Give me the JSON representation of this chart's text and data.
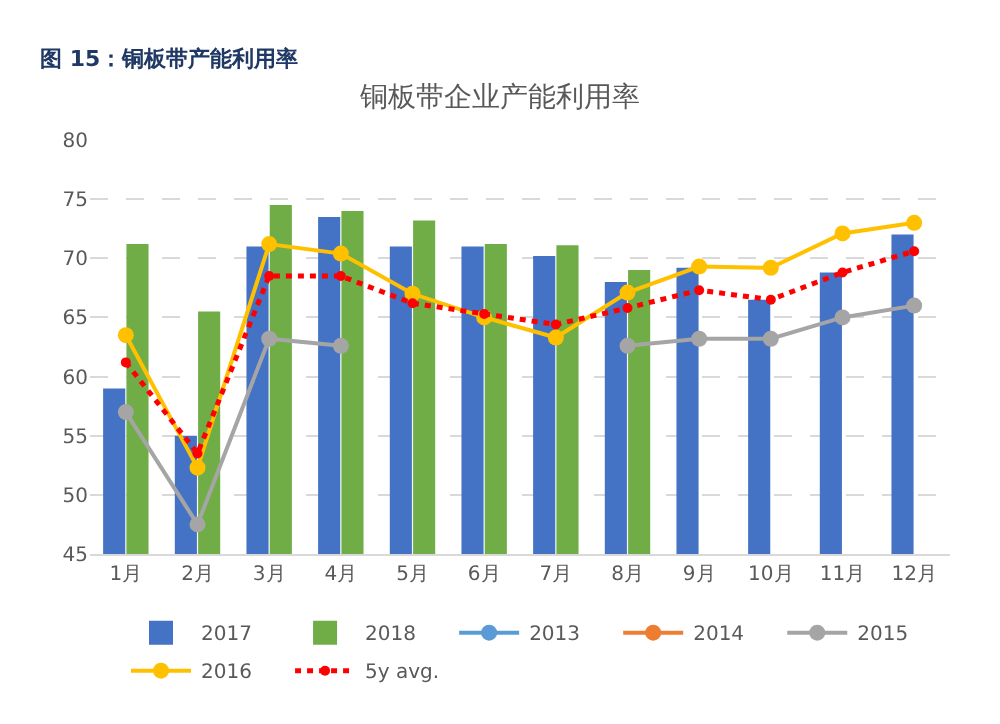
{
  "chart_data": {
    "type": "bar",
    "title": "铜板带企业产能利用率",
    "annotations": [
      "图 15：铜板带产能利用率"
    ],
    "categories": [
      "1月",
      "2月",
      "3月",
      "4月",
      "5月",
      "6月",
      "7月",
      "8月",
      "9月",
      "10月",
      "11月",
      "12月"
    ],
    "series": [
      {
        "name": "2017",
        "color": "#4472c4",
        "values": [
          59,
          55,
          71,
          73.5,
          71,
          71,
          70.2,
          68,
          69.2,
          66.5,
          68.8,
          72
        ]
      },
      {
        "name": "2018",
        "color": "#70ad47",
        "values": [
          71.2,
          65.5,
          74.5,
          74,
          73.2,
          71.2,
          71.1,
          69,
          null,
          null,
          null,
          null
        ]
      },
      {
        "name": "2013",
        "type": "line",
        "color": "#5b9bd5",
        "values": [
          null,
          null,
          null,
          null,
          null,
          null,
          null,
          null,
          null,
          null,
          null,
          null
        ]
      },
      {
        "name": "2014",
        "type": "line",
        "color": "#ed7d31",
        "values": [
          null,
          null,
          null,
          null,
          null,
          null,
          null,
          null,
          null,
          null,
          null,
          null
        ]
      },
      {
        "name": "2015",
        "type": "line",
        "color": "#a5a5a5",
        "values": [
          57,
          47.5,
          63.2,
          62.6,
          null,
          null,
          null,
          62.6,
          63.2,
          63.2,
          65,
          66
        ]
      },
      {
        "name": "2016",
        "type": "line",
        "color": "#ffc000",
        "values": [
          63.5,
          52.3,
          71.2,
          70.4,
          67,
          65,
          63.3,
          67.1,
          69.3,
          69.2,
          72.1,
          73
        ]
      },
      {
        "name": "5y avg.",
        "type": "line",
        "line_style": "dotted",
        "color": "#ff0000",
        "values": [
          61.2,
          53.5,
          68.5,
          68.5,
          66.2,
          65.3,
          64.4,
          65.8,
          67.3,
          66.5,
          68.8,
          70.6
        ]
      }
    ],
    "ylim": [
      45,
      80
    ],
    "yticks": [
      45,
      50,
      55,
      60,
      65,
      70,
      75,
      80
    ],
    "grid": "y",
    "legend": "bottom",
    "marker": "circle"
  }
}
